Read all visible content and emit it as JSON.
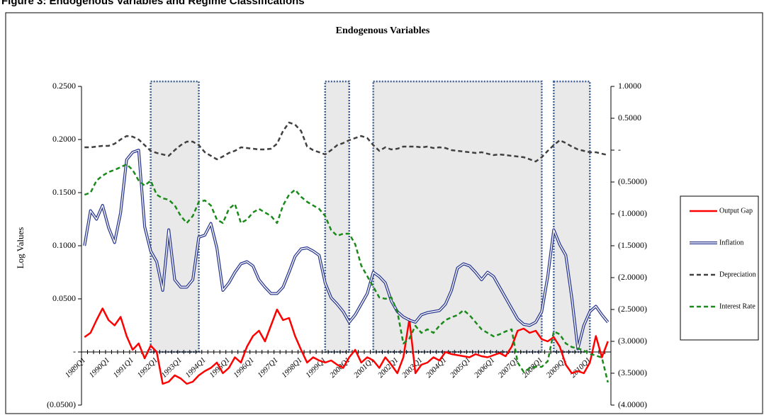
{
  "heading": "Figure 3: Endogenous Variables and Regime Classifications",
  "chart_data": {
    "type": "line",
    "title": "Endogenous Variables",
    "y_label": "Log Values",
    "categories": [
      "1989Q1",
      null,
      null,
      null,
      "1990Q1",
      null,
      null,
      null,
      "1991Q1",
      null,
      null,
      null,
      "1992Q1",
      null,
      null,
      null,
      "1993Q1",
      null,
      null,
      null,
      "1994Q1",
      null,
      null,
      null,
      "1995Q1",
      null,
      null,
      null,
      "1996Q1",
      null,
      null,
      null,
      "1997Q1",
      null,
      null,
      null,
      "1998Q1",
      null,
      null,
      null,
      "1999Q1",
      null,
      null,
      null,
      "2000Q1",
      null,
      null,
      null,
      "2001Q1",
      null,
      null,
      null,
      "2002Q1",
      null,
      null,
      null,
      "2003Q1",
      null,
      null,
      null,
      "2004Q1",
      null,
      null,
      null,
      "2005Q1",
      null,
      null,
      null,
      "2006Q1",
      null,
      null,
      null,
      "2007Q1",
      null,
      null,
      null,
      "2008Q1",
      null,
      null,
      null,
      "2009Q1",
      null,
      null,
      null,
      "2010Q1",
      null,
      null,
      null
    ],
    "regime": [
      0,
      0,
      0,
      0,
      0,
      0,
      0,
      0,
      0,
      0,
      0,
      1,
      1,
      1,
      1,
      1,
      1,
      1,
      1,
      1,
      0,
      0,
      0,
      0,
      0,
      0,
      0,
      0,
      0,
      0,
      0,
      0,
      0,
      0,
      0,
      0,
      0,
      0,
      0,
      0,
      1,
      1,
      1,
      1,
      1,
      0,
      0,
      0,
      1,
      1,
      1,
      1,
      1,
      1,
      1,
      1,
      1,
      1,
      1,
      1,
      1,
      1,
      1,
      1,
      1,
      1,
      1,
      1,
      1,
      1,
      1,
      1,
      1,
      1,
      1,
      1,
      1,
      0,
      1,
      1,
      1,
      1,
      1,
      1,
      1,
      0,
      0,
      0
    ],
    "series": [
      {
        "name": "Output Gap",
        "color": "#ff0000",
        "line_style": "solid",
        "axis": "y",
        "values": [
          0.014,
          0.018,
          0.03,
          0.041,
          0.03,
          0.025,
          0.033,
          0.015,
          0.002,
          0.008,
          -0.006,
          0.006,
          0.0,
          -0.03,
          -0.028,
          -0.022,
          -0.025,
          -0.03,
          -0.028,
          -0.022,
          -0.018,
          -0.015,
          -0.01,
          -0.02,
          -0.015,
          -0.005,
          -0.01,
          0.005,
          0.015,
          0.02,
          0.01,
          0.025,
          0.04,
          0.03,
          0.032,
          0.015,
          0.002,
          -0.01,
          -0.005,
          -0.008,
          -0.01,
          -0.008,
          -0.012,
          -0.015,
          -0.005,
          0.002,
          -0.01,
          -0.005,
          -0.008,
          -0.015,
          -0.005,
          -0.012,
          -0.02,
          -0.005,
          0.031,
          -0.02,
          -0.012,
          -0.01,
          -0.005,
          -0.008,
          0.0,
          -0.002,
          -0.003,
          -0.004,
          -0.005,
          -0.002,
          -0.004,
          -0.005,
          -0.003,
          -0.001,
          -0.004,
          0.005,
          0.02,
          0.022,
          0.018,
          0.02,
          0.012,
          0.01,
          0.014,
          0.005,
          -0.012,
          -0.02,
          -0.018,
          -0.02,
          -0.01,
          0.015,
          -0.005,
          0.01
        ]
      },
      {
        "name": "Inflation",
        "color": "#2b3990",
        "line_style": "double",
        "axis": "y",
        "values": [
          0.1,
          0.133,
          0.125,
          0.138,
          0.117,
          0.103,
          0.131,
          0.181,
          0.188,
          0.19,
          0.118,
          0.095,
          0.085,
          0.058,
          0.115,
          0.068,
          0.061,
          0.061,
          0.068,
          0.108,
          0.11,
          0.121,
          0.098,
          0.058,
          0.065,
          0.075,
          0.083,
          0.085,
          0.081,
          0.068,
          0.061,
          0.055,
          0.055,
          0.061,
          0.075,
          0.09,
          0.097,
          0.098,
          0.095,
          0.091,
          0.065,
          0.051,
          0.045,
          0.038,
          0.028,
          0.035,
          0.045,
          0.055,
          0.075,
          0.071,
          0.065,
          0.048,
          0.038,
          0.033,
          0.03,
          0.028,
          0.035,
          0.037,
          0.038,
          0.039,
          0.045,
          0.058,
          0.079,
          0.083,
          0.081,
          0.075,
          0.068,
          0.075,
          0.071,
          0.061,
          0.051,
          0.041,
          0.031,
          0.026,
          0.025,
          0.028,
          0.038,
          0.071,
          0.115,
          0.101,
          0.091,
          0.051,
          0.003,
          0.025,
          0.038,
          0.043,
          0.035,
          0.028
        ]
      },
      {
        "name": "Depreciation",
        "color": "#404040",
        "line_style": "dashed",
        "axis": "y2",
        "values": [
          0.044,
          0.044,
          0.056,
          0.067,
          0.067,
          0.1,
          0.167,
          0.222,
          0.211,
          0.167,
          0.078,
          -0.011,
          -0.044,
          -0.067,
          -0.089,
          0,
          0.078,
          0.133,
          0.133,
          0.078,
          -0.033,
          -0.089,
          -0.144,
          -0.1,
          -0.044,
          -0.011,
          0.044,
          0.033,
          0.022,
          0.011,
          0.011,
          0.022,
          0.1,
          0.3,
          0.433,
          0.4,
          0.3,
          0.056,
          0,
          -0.033,
          -0.067,
          0,
          0.078,
          0.111,
          0.156,
          0.189,
          0.222,
          0.189,
          0.078,
          -0.011,
          0.044,
          0.011,
          0.022,
          0.056,
          0.056,
          0.056,
          0.044,
          0.056,
          0.033,
          0.044,
          0.033,
          0,
          -0.011,
          -0.022,
          -0.033,
          -0.044,
          -0.033,
          -0.056,
          -0.078,
          -0.067,
          -0.078,
          -0.089,
          -0.1,
          -0.111,
          -0.144,
          -0.178,
          -0.111,
          -0.011,
          0.078,
          0.156,
          0.111,
          0.056,
          0.011,
          -0.011,
          -0.033,
          -0.033,
          -0.056,
          -0.078
        ]
      },
      {
        "name": "Interest Rate",
        "color": "#1a8a1a",
        "line_style": "dashed",
        "axis": "y2",
        "values": [
          -0.7,
          -0.667,
          -0.478,
          -0.4,
          -0.344,
          -0.311,
          -0.267,
          -0.222,
          -0.311,
          -0.478,
          -0.556,
          -0.478,
          -0.7,
          -0.756,
          -0.778,
          -0.867,
          -1.033,
          -1.144,
          -1.033,
          -0.811,
          -0.789,
          -0.867,
          -1.089,
          -1.144,
          -0.922,
          -0.844,
          -1.144,
          -1.089,
          -0.978,
          -0.922,
          -0.978,
          -1.033,
          -1.144,
          -0.867,
          -0.7,
          -0.622,
          -0.733,
          -0.811,
          -0.867,
          -0.922,
          -1.033,
          -1.256,
          -1.344,
          -1.311,
          -1.311,
          -1.478,
          -1.811,
          -1.978,
          -2.144,
          -2.311,
          -2.333,
          -2.311,
          -2.533,
          -3.033,
          -2.956,
          -2.756,
          -2.867,
          -2.811,
          -2.867,
          -2.756,
          -2.667,
          -2.622,
          -2.589,
          -2.511,
          -2.589,
          -2.7,
          -2.811,
          -2.867,
          -2.922,
          -2.889,
          -2.844,
          -2.811,
          -3.333,
          -3.478,
          -3.422,
          -3.4,
          -3.4,
          -3.311,
          -2.844,
          -2.889,
          -3.033,
          -3.089,
          -3.111,
          -3.144,
          -3.2,
          -3.222,
          -3.256,
          -3.644
        ]
      }
    ],
    "ylim": [
      -0.05,
      0.25
    ],
    "yticks": [
      {
        "value": -0.05,
        "label": "(0.0500)"
      },
      {
        "value": 0,
        "label": "-"
      },
      {
        "value": 0.05,
        "label": "0.0500"
      },
      {
        "value": 0.1,
        "label": "0.1000"
      },
      {
        "value": 0.15,
        "label": "0.1500"
      },
      {
        "value": 0.2,
        "label": "0.2000"
      },
      {
        "value": 0.25,
        "label": "0.2500"
      }
    ],
    "y2lim": [
      -4,
      1
    ],
    "y2ticks": [
      {
        "value": -4,
        "label": "(4.0000)"
      },
      {
        "value": -3.5,
        "label": "(3.5000)"
      },
      {
        "value": -3,
        "label": "(3.0000)"
      },
      {
        "value": -2.5,
        "label": "(2.5000)"
      },
      {
        "value": -2,
        "label": "(2.0000)"
      },
      {
        "value": -1.5,
        "label": "(1.5000)"
      },
      {
        "value": -1,
        "label": "(1.0000)"
      },
      {
        "value": -0.5,
        "label": "(0.5000)"
      },
      {
        "value": 0,
        "label": "-"
      },
      {
        "value": 0.5,
        "label": "0.5000"
      },
      {
        "value": 1,
        "label": "1.0000"
      }
    ],
    "legend": "right",
    "grid": false
  }
}
